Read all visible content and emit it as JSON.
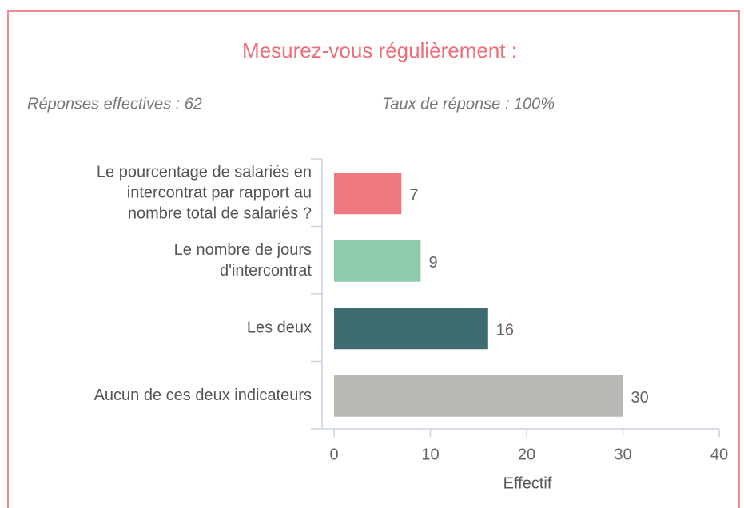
{
  "chart_data": {
    "type": "barh",
    "title": "Mesurez-vous régulièrement :",
    "responses": "Réponses effectives : 62",
    "rate": "Taux de réponse : 100%",
    "categories": [
      [
        "Le pourcentage de salariés en",
        "intercontrat par rapport au",
        "nombre total de salariés ?"
      ],
      [
        "Le nombre de jours",
        "d'intercontrat"
      ],
      [
        "Les deux"
      ],
      [
        "Aucun de ces deux indicateurs"
      ]
    ],
    "values": [
      7,
      9,
      16,
      30
    ],
    "colors": [
      "#f07880",
      "#8ecbad",
      "#3d6b70",
      "#b9b9b4"
    ],
    "xlabel": "Effectif",
    "xlim": [
      0,
      40
    ],
    "xticks": [
      0,
      10,
      20,
      30,
      40
    ],
    "grid": false
  }
}
